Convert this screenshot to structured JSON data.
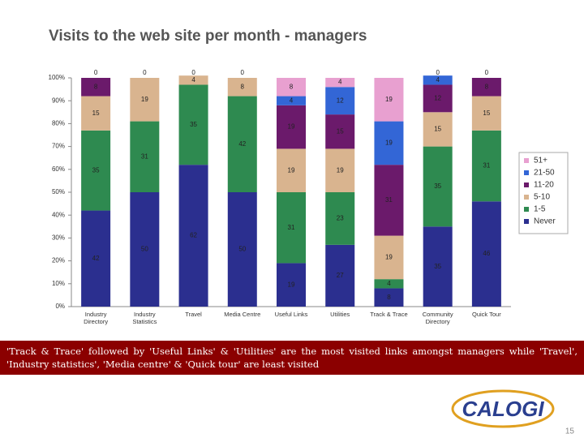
{
  "chart_data": {
    "type": "stacked_bar",
    "title": "Visits to the web site per month - managers",
    "categories": [
      "Industry Directory",
      "Industry Statistics",
      "Travel",
      "Media Centre",
      "Useful Links",
      "Utilities",
      "Track & Trace",
      "Community Directory",
      "Quick Tour"
    ],
    "series": [
      {
        "name": "Never",
        "color": "#2b2f8f",
        "values": [
          42,
          50,
          62,
          50,
          19,
          27,
          8,
          35,
          46
        ]
      },
      {
        "name": "1-5",
        "color": "#2e8a50",
        "values": [
          35,
          31,
          35,
          42,
          31,
          23,
          4,
          35,
          31
        ]
      },
      {
        "name": "5-10",
        "color": "#d9b48f",
        "values": [
          15,
          19,
          4,
          8,
          19,
          19,
          19,
          15,
          15
        ]
      },
      {
        "name": "11-20",
        "color": "#6b1a6b",
        "values": [
          8,
          null,
          null,
          null,
          19,
          15,
          31,
          12,
          8
        ]
      },
      {
        "name": "21-50",
        "color": "#3366d6",
        "values": [
          null,
          null,
          null,
          null,
          4,
          12,
          19,
          4,
          null
        ]
      },
      {
        "name": "51+",
        "color": "#e8a0d0",
        "values": [
          0,
          0,
          0,
          0,
          8,
          4,
          19,
          0,
          0
        ]
      }
    ],
    "ylim": [
      0,
      100
    ],
    "yticks": [
      {
        "value": 0,
        "label": "0%"
      },
      {
        "value": 10,
        "label": "10%"
      },
      {
        "value": 20,
        "label": "20%"
      },
      {
        "value": 30,
        "label": "30%"
      },
      {
        "value": 40,
        "label": "40%"
      },
      {
        "value": 50,
        "label": "50%"
      },
      {
        "value": 60,
        "label": "60%"
      },
      {
        "value": 70,
        "label": "70%"
      },
      {
        "value": 80,
        "label": "80%"
      },
      {
        "value": 90,
        "label": "90%"
      },
      {
        "value": 100,
        "label": "100%"
      }
    ],
    "legend": "right"
  },
  "caption": "'Track & Trace' followed by 'Useful Links' & 'Utilities' are the most visited links amongst managers while 'Travel', 'Industry statistics', 'Media centre' & 'Quick tour' are least visited",
  "logo": "CALOGI",
  "page_number": "15"
}
